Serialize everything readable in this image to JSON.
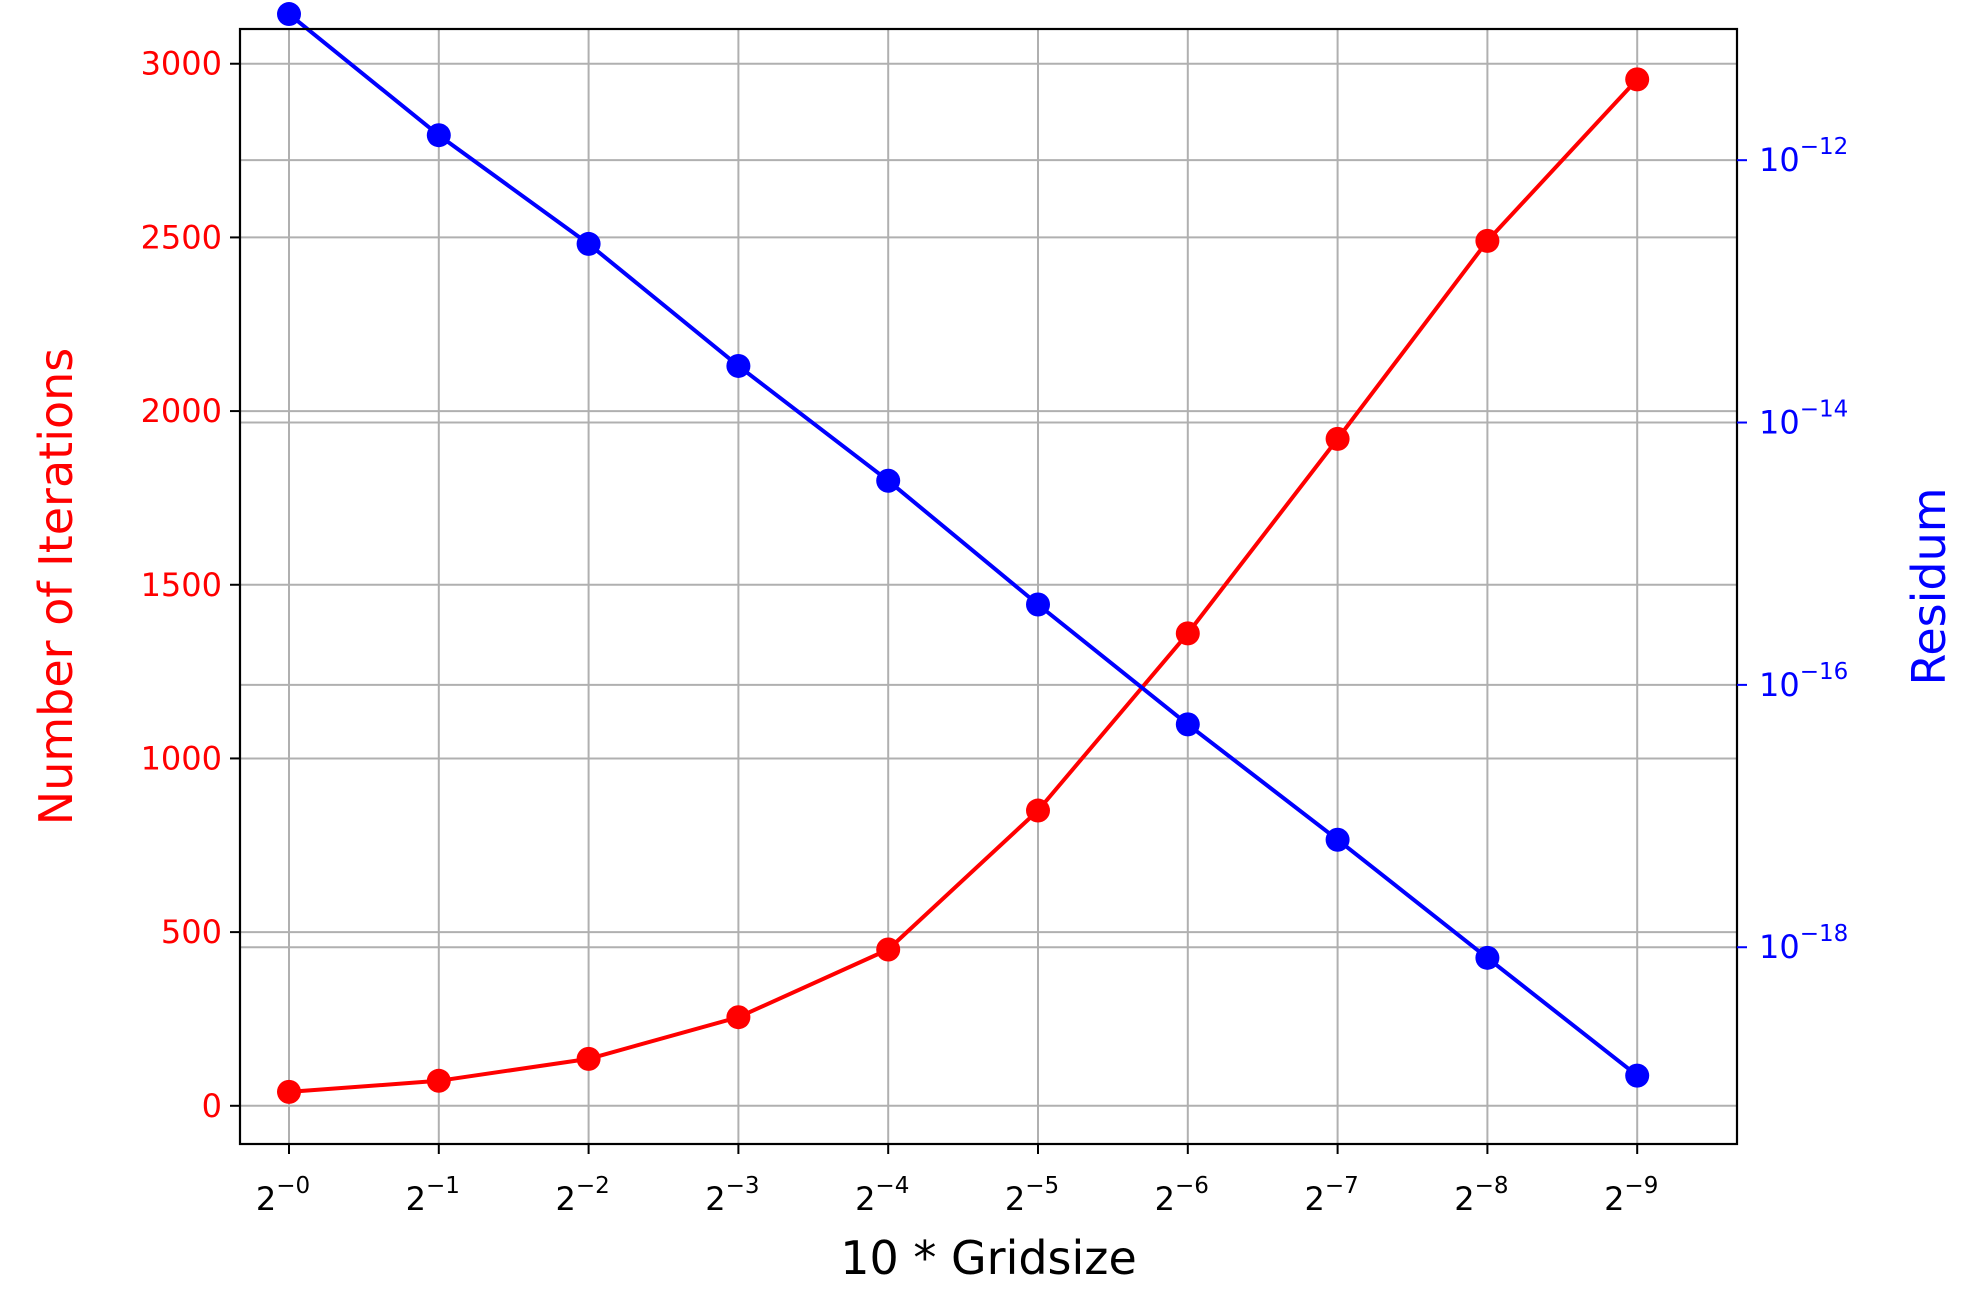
{
  "chart_data": {
    "type": "line",
    "categories": [
      "2^-0",
      "2^-1",
      "2^-2",
      "2^-3",
      "2^-4",
      "2^-5",
      "2^-6",
      "2^-7",
      "2^-8",
      "2^-9"
    ],
    "x_exponents": [
      0,
      1,
      2,
      3,
      4,
      5,
      6,
      7,
      8,
      9
    ],
    "x_base": "2",
    "xlabel": "10 * Gridsize",
    "ylabel_left": "Number of Iterations",
    "ylabel_right": "Residum",
    "ylim_left": [
      -110,
      3100
    ],
    "yticks_left": [
      0,
      500,
      1000,
      1500,
      2000,
      2500,
      3000
    ],
    "ylim_right_log10": [
      -19.5,
      -11.0
    ],
    "yticks_right_exponents": [
      -12,
      -14,
      -16,
      -18
    ],
    "yticks_right_base": "10",
    "grid": true,
    "series": [
      {
        "axis": "left",
        "color": "#ff0000",
        "marker": "circle",
        "values": [
          40,
          72,
          135,
          255,
          450,
          850,
          1360,
          1920,
          2490,
          2955
        ]
      },
      {
        "axis": "right",
        "scale": "log",
        "color": "#0000ff",
        "marker": "circle",
        "values": [
          1.3e-11,
          1.55e-12,
          2.3e-13,
          2.7e-14,
          3.6e-15,
          4.1e-16,
          5e-17,
          6.6e-18,
          8.3e-19,
          1.05e-19
        ]
      }
    ],
    "colors": {
      "left_axis": "#ff0000",
      "right_axis": "#0000ff",
      "grid": "#b0b0b0",
      "frame": "#000000"
    }
  }
}
